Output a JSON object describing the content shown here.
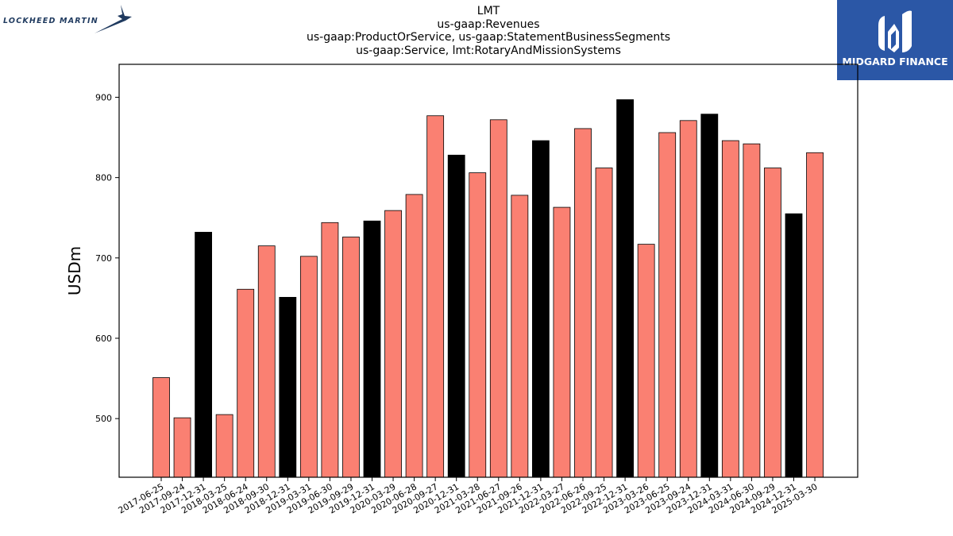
{
  "header": {
    "left_logo_text": "LOCKHEED MARTIN",
    "right_logo_text": "MIDGARD FINANCE",
    "right_logo_color": "#2b57a6"
  },
  "chart_data": {
    "type": "bar",
    "title_lines": [
      "LMT",
      "us-gaap:Revenues",
      "us-gaap:ProductOrService, us-gaap:StatementBusinessSegments",
      "us-gaap:Service, lmt:RotaryAndMissionSystems"
    ],
    "ylabel": "USDm",
    "xlabel": "",
    "ylim": [
      427,
      941
    ],
    "yticks": [
      500,
      600,
      700,
      800,
      900
    ],
    "grid": false,
    "colors": {
      "quarter": "#fa8072",
      "year_end": "#000000",
      "edge": "#000000"
    },
    "categories": [
      "2017-06-25",
      "2017-09-24",
      "2017-12-31",
      "2018-03-25",
      "2018-06-24",
      "2018-09-30",
      "2018-12-31",
      "2019-03-31",
      "2019-06-30",
      "2019-09-29",
      "2019-12-31",
      "2020-03-29",
      "2020-06-28",
      "2020-09-27",
      "2020-12-31",
      "2021-03-28",
      "2021-06-27",
      "2021-09-26",
      "2021-12-31",
      "2022-03-27",
      "2022-06-26",
      "2022-09-25",
      "2022-12-31",
      "2023-03-26",
      "2023-06-25",
      "2023-09-24",
      "2023-12-31",
      "2024-03-31",
      "2024-06-30",
      "2024-09-29",
      "2024-12-31",
      "2025-03-30"
    ],
    "values": [
      551,
      501,
      732,
      505,
      661,
      715,
      651,
      702,
      744,
      726,
      746,
      759,
      779,
      877,
      828,
      806,
      872,
      778,
      846,
      763,
      861,
      812,
      897,
      717,
      856,
      871,
      879,
      846,
      842,
      812,
      755,
      831
    ],
    "year_end": [
      false,
      false,
      true,
      false,
      false,
      false,
      true,
      false,
      false,
      false,
      true,
      false,
      false,
      false,
      true,
      false,
      false,
      false,
      true,
      false,
      false,
      false,
      true,
      false,
      false,
      false,
      true,
      false,
      false,
      false,
      true,
      false
    ]
  }
}
